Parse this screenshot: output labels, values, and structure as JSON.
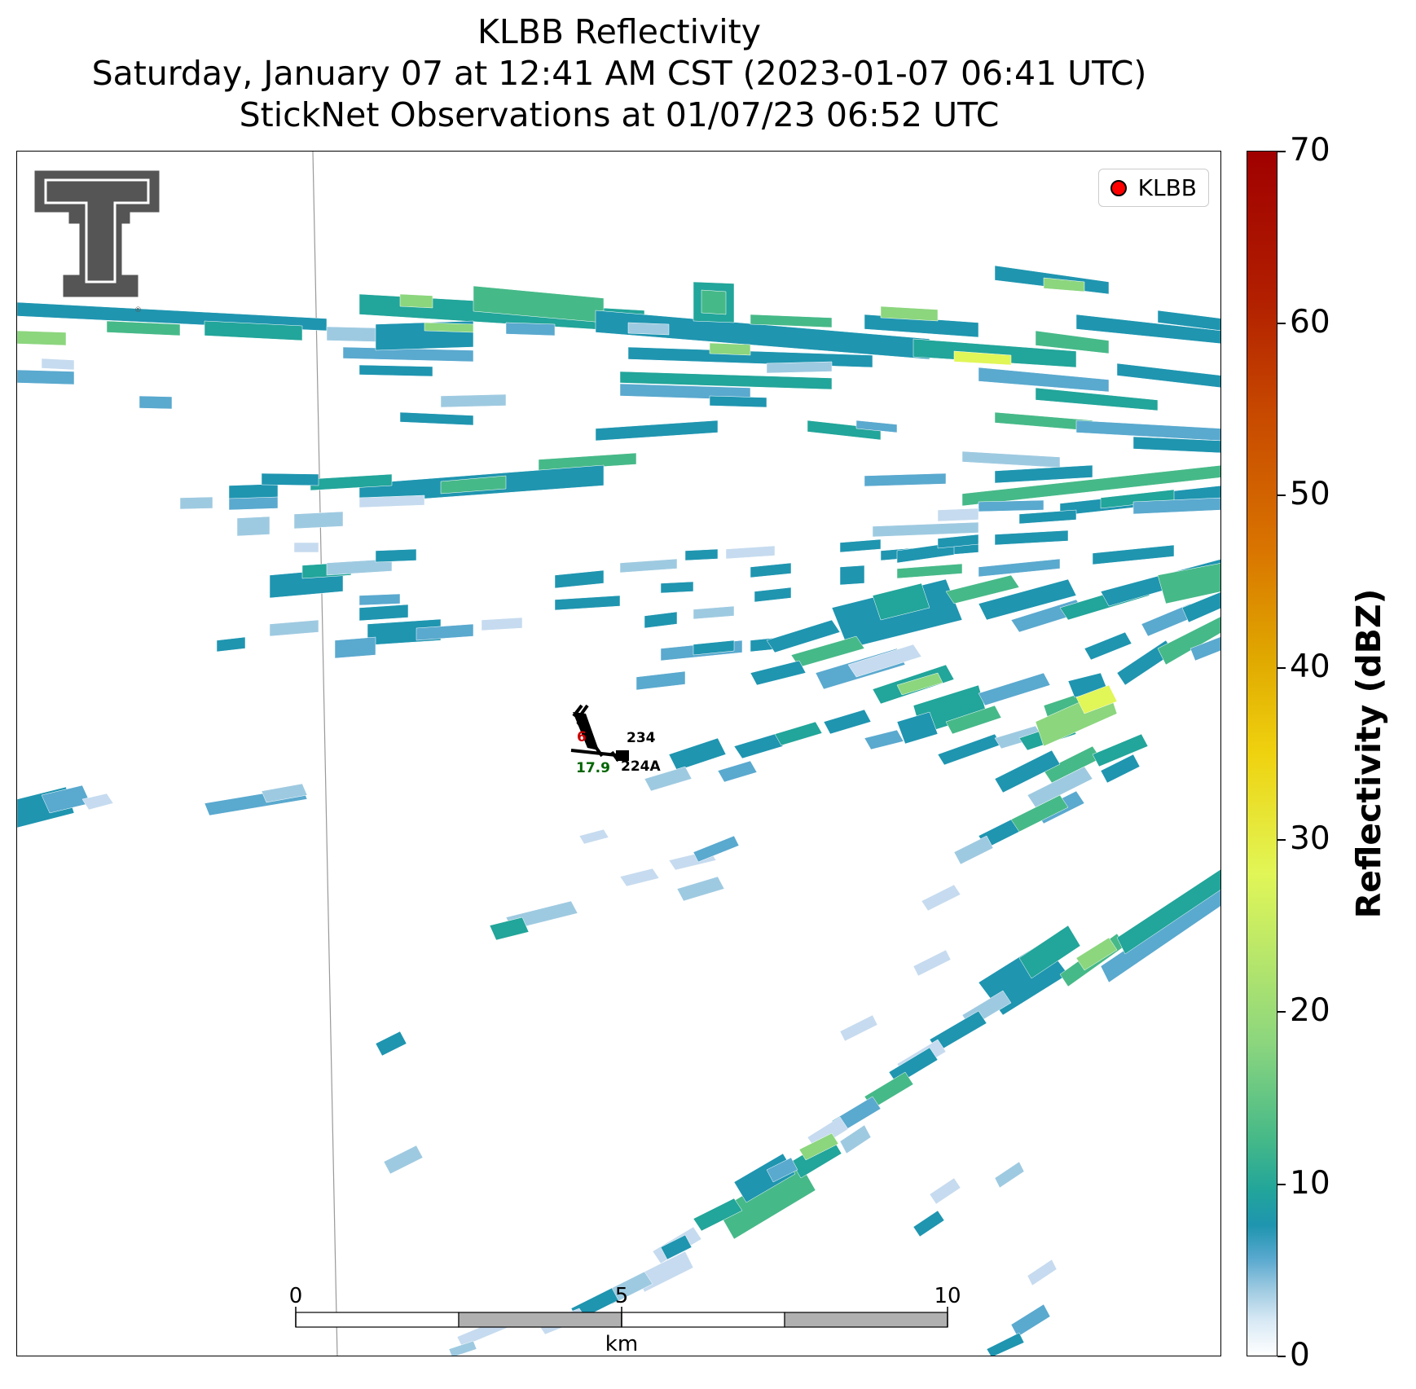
{
  "title": {
    "line1": "KLBB Reflectivity",
    "line2": "Saturday, January 07 at 12:41 AM CST (2023-01-07 06:41 UTC)",
    "line3": "StickNet Observations at 01/07/23 06:52 UTC"
  },
  "legend": {
    "label": "KLBB",
    "marker_color": "#ff0000"
  },
  "colorbar": {
    "label": "Reflectivity (dBZ)",
    "ticks": [
      "0",
      "10",
      "20",
      "30",
      "40",
      "50",
      "60",
      "70"
    ],
    "min": 0,
    "max": 70
  },
  "scalebar": {
    "ticks": [
      "0",
      "5",
      "10"
    ],
    "unit": "km"
  },
  "stations": [
    {
      "id": "234",
      "temp": "6",
      "temp_color": "#cc0000"
    },
    {
      "id": "224A",
      "dewpoint": "17.9",
      "dewpoint_color": "#006400"
    }
  ],
  "logo": {
    "name": "texas-tech-double-t-logo",
    "trademark": "®"
  }
}
